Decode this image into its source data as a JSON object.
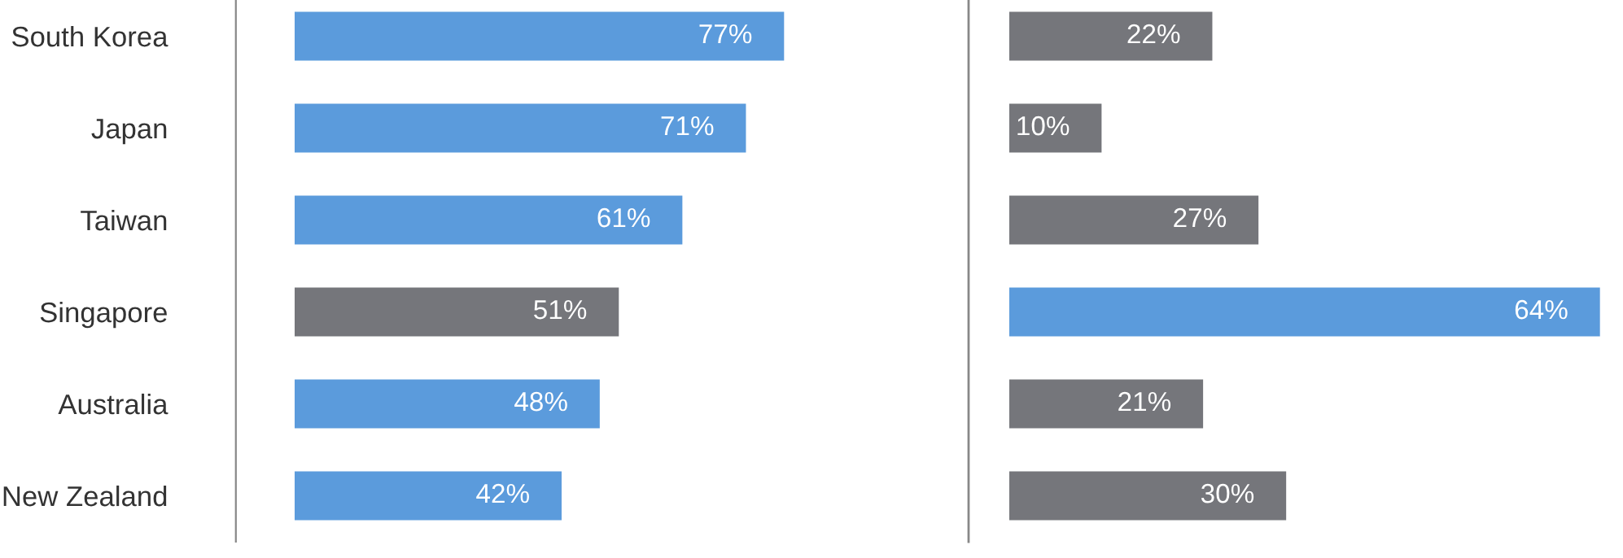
{
  "chart_data": [
    {
      "type": "bar",
      "orientation": "horizontal",
      "categories": [
        "South Korea",
        "Japan",
        "Taiwan",
        "Singapore",
        "Australia",
        "New Zealand"
      ],
      "values": [
        77,
        71,
        61,
        51,
        48,
        42
      ],
      "value_labels": [
        "77%",
        "71%",
        "61%",
        "51%",
        "48%",
        "42%"
      ],
      "colors": [
        "#5b9bdc",
        "#5b9bdc",
        "#5b9bdc",
        "#75767b",
        "#5b9bdc",
        "#5b9bdc"
      ],
      "tick_labels": "y",
      "grid": false,
      "legend": false
    },
    {
      "type": "bar",
      "orientation": "horizontal",
      "categories": [
        null,
        null,
        null,
        null,
        null,
        null
      ],
      "values": [
        22,
        10,
        27,
        64,
        21,
        30
      ],
      "value_labels": [
        "22%",
        "10%",
        "27%",
        "64%",
        "21%",
        "30%"
      ],
      "colors": [
        "#75767b",
        "#75767b",
        "#75767b",
        "#5b9bdc",
        "#75767b",
        "#75767b"
      ],
      "tick_labels": false,
      "grid": false,
      "legend": false
    }
  ]
}
